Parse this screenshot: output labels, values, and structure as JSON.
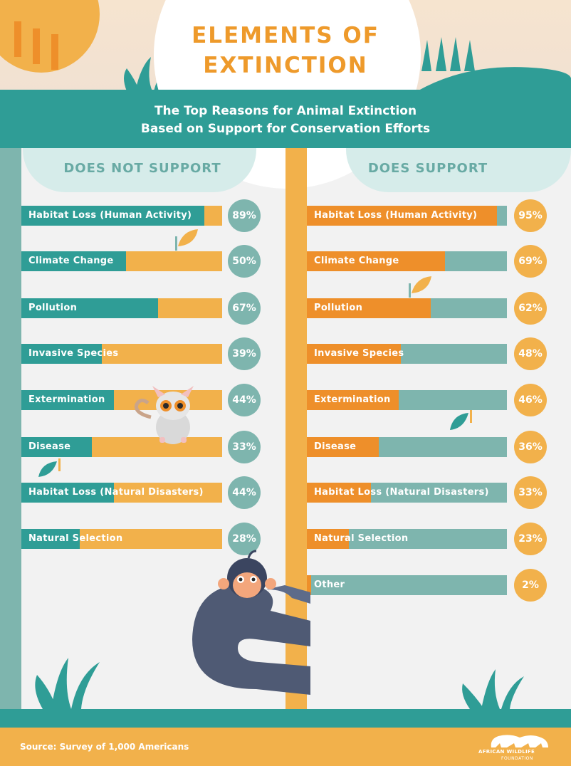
{
  "title": {
    "line1": "ELEMENTS OF",
    "line2": "EXTINCTION"
  },
  "subtitle": {
    "line1": "The Top Reasons for Animal Extinction",
    "line2": "Based on Support for Conservation Efforts"
  },
  "colors": {
    "teal": "#2f9d96",
    "light_teal": "#7eb5ae",
    "orange": "#f2b14b",
    "deep_orange": "#ee8f2a",
    "cream": "#f6e4cf"
  },
  "chart_data": [
    {
      "type": "bar",
      "title": "DOES NOT SUPPORT",
      "unit": "%",
      "categories": [
        "Habitat Loss (Human Activity)",
        "Climate Change",
        "Pollution",
        "Invasive Species",
        "Extermination",
        "Disease",
        "Habitat Loss (Natural Disasters)",
        "Natural Selection"
      ],
      "values": [
        89,
        50,
        67,
        39,
        44,
        33,
        44,
        28
      ],
      "labels": [
        "89%",
        "50%",
        "67%",
        "39%",
        "44%",
        "33%",
        "44%",
        "28%"
      ],
      "ylim": [
        0,
        100
      ]
    },
    {
      "type": "bar",
      "title": "DOES SUPPORT",
      "unit": "%",
      "categories": [
        "Habitat Loss (Human Activity)",
        "Climate Change",
        "Pollution",
        "Invasive Species",
        "Extermination",
        "Disease",
        "Habitat Loss (Natural Disasters)",
        "Natural Selection",
        "Other"
      ],
      "values": [
        95,
        69,
        62,
        48,
        46,
        36,
        33,
        23,
        2
      ],
      "labels": [
        "95%",
        "69%",
        "62%",
        "48%",
        "46%",
        "36%",
        "33%",
        "23%",
        "2%"
      ],
      "ylim": [
        0,
        100
      ]
    }
  ],
  "footer": {
    "source": "Source: Survey of 1,000 Americans",
    "logo_line1": "AFRICAN WILDLIFE",
    "logo_line2": "FOUNDATION"
  }
}
